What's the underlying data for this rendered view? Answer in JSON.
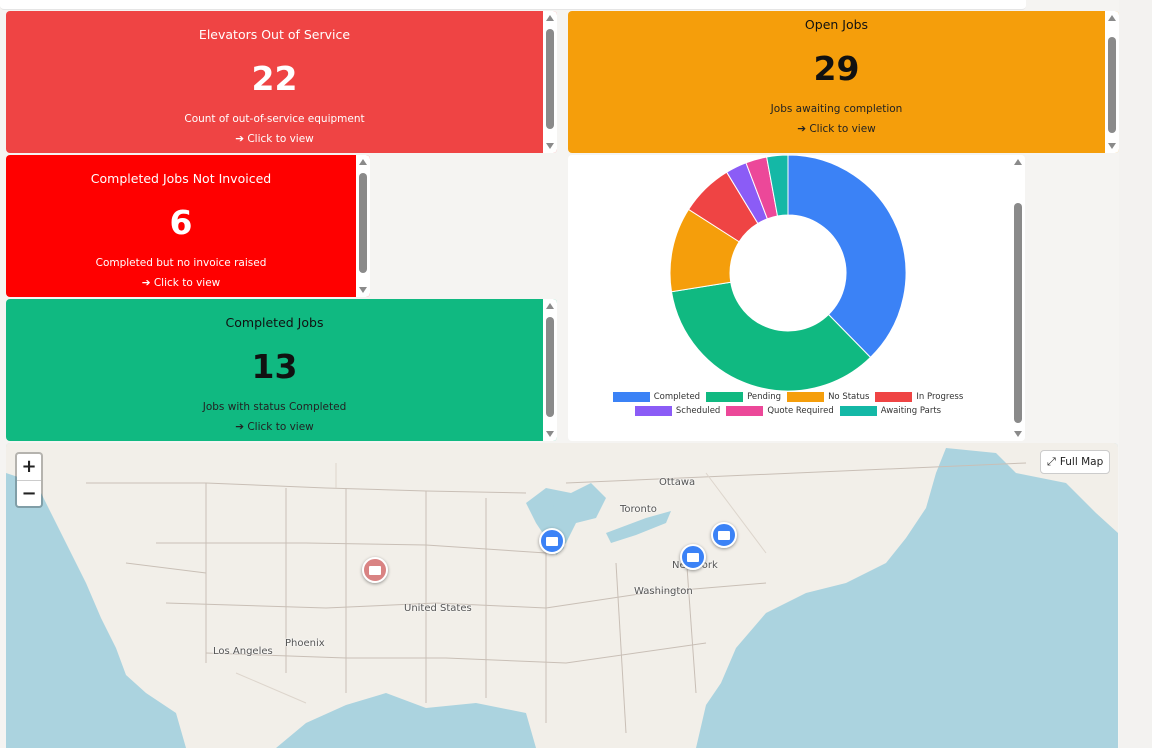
{
  "cards": {
    "elevators": {
      "title": "Elevators Out of Service",
      "value": "22",
      "desc": "Count of out-of-service equipment",
      "link": "➔ Click to view",
      "color": "#ef4444"
    },
    "open_jobs": {
      "title": "Open Jobs",
      "value": "29",
      "desc": "Jobs awaiting completion",
      "link": "➔ Click to view",
      "color": "#f59e0b"
    },
    "not_invoiced": {
      "title": "Completed Jobs Not Invoiced",
      "value": "6",
      "desc": "Completed but no invoice raised",
      "link": "➔ Click to view",
      "color": "#ff0000"
    },
    "completed": {
      "title": "Completed Jobs",
      "value": "13",
      "desc": "Jobs with status Completed",
      "link": "➔ Click to view",
      "color": "#10b981"
    }
  },
  "chart_data": {
    "type": "pie",
    "donut": true,
    "categories": [
      "Completed",
      "Pending",
      "No Status",
      "In Progress",
      "Scheduled",
      "Quote Required",
      "Awaiting Parts"
    ],
    "values": [
      13,
      12,
      4,
      2.5,
      1,
      1,
      1
    ],
    "colors": [
      "#3b82f6",
      "#10b981",
      "#f59e0b",
      "#ef4444",
      "#8b5cf6",
      "#ec4899",
      "#14b8a6"
    ],
    "legend_position": "bottom"
  },
  "map": {
    "zoom_in": "+",
    "zoom_out": "−",
    "full_map_label": "Full Map",
    "labels": {
      "ottawa": "Ottawa",
      "toronto": "Toronto",
      "newyork": "New York",
      "washington": "Washington",
      "us": "United States",
      "phoenix": "Phoenix",
      "la": "Los Angeles"
    },
    "pin_blue": "#3b82f6",
    "pin_red": "#d98383"
  }
}
